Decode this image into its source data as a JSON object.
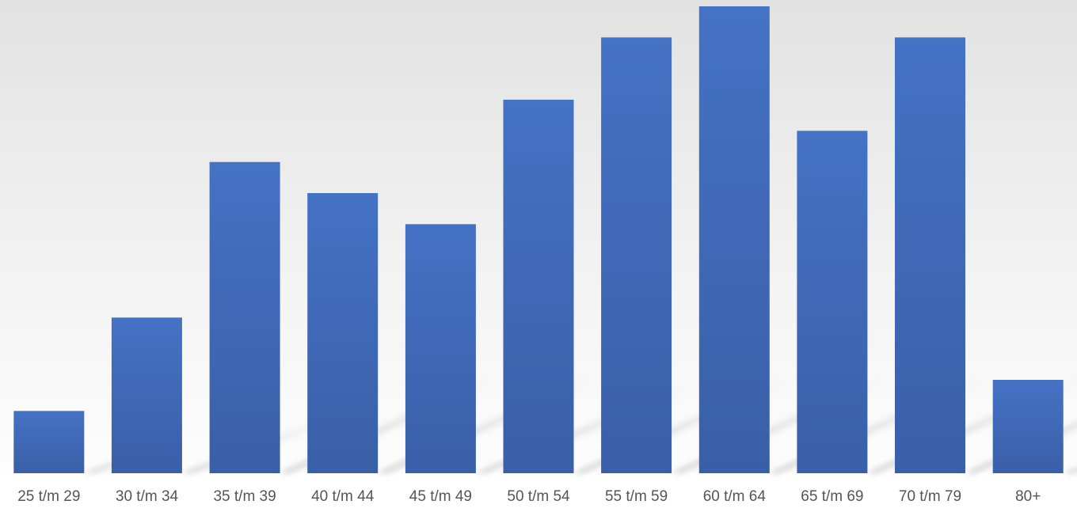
{
  "chart_data": {
    "type": "bar",
    "title": "",
    "xlabel": "",
    "ylabel": "",
    "categories": [
      "25 t/m 29",
      "30 t/m 34",
      "35 t/m 39",
      "40 t/m 44",
      "45 t/m 49",
      "50 t/m 54",
      "55 t/m 59",
      "60 t/m 64",
      "65 t/m 69",
      "70 t/m 79",
      "80+"
    ],
    "values": [
      2,
      5,
      10,
      9,
      8,
      12,
      14,
      15,
      11,
      14,
      3
    ],
    "ylim": [
      0,
      15
    ],
    "grid": false,
    "legend": "none",
    "colors": {
      "bar_top": "#4472c4",
      "bar_bottom": "#3a5fa8",
      "background_top": "#e2e2e2",
      "background_bottom": "#ffffff"
    }
  }
}
